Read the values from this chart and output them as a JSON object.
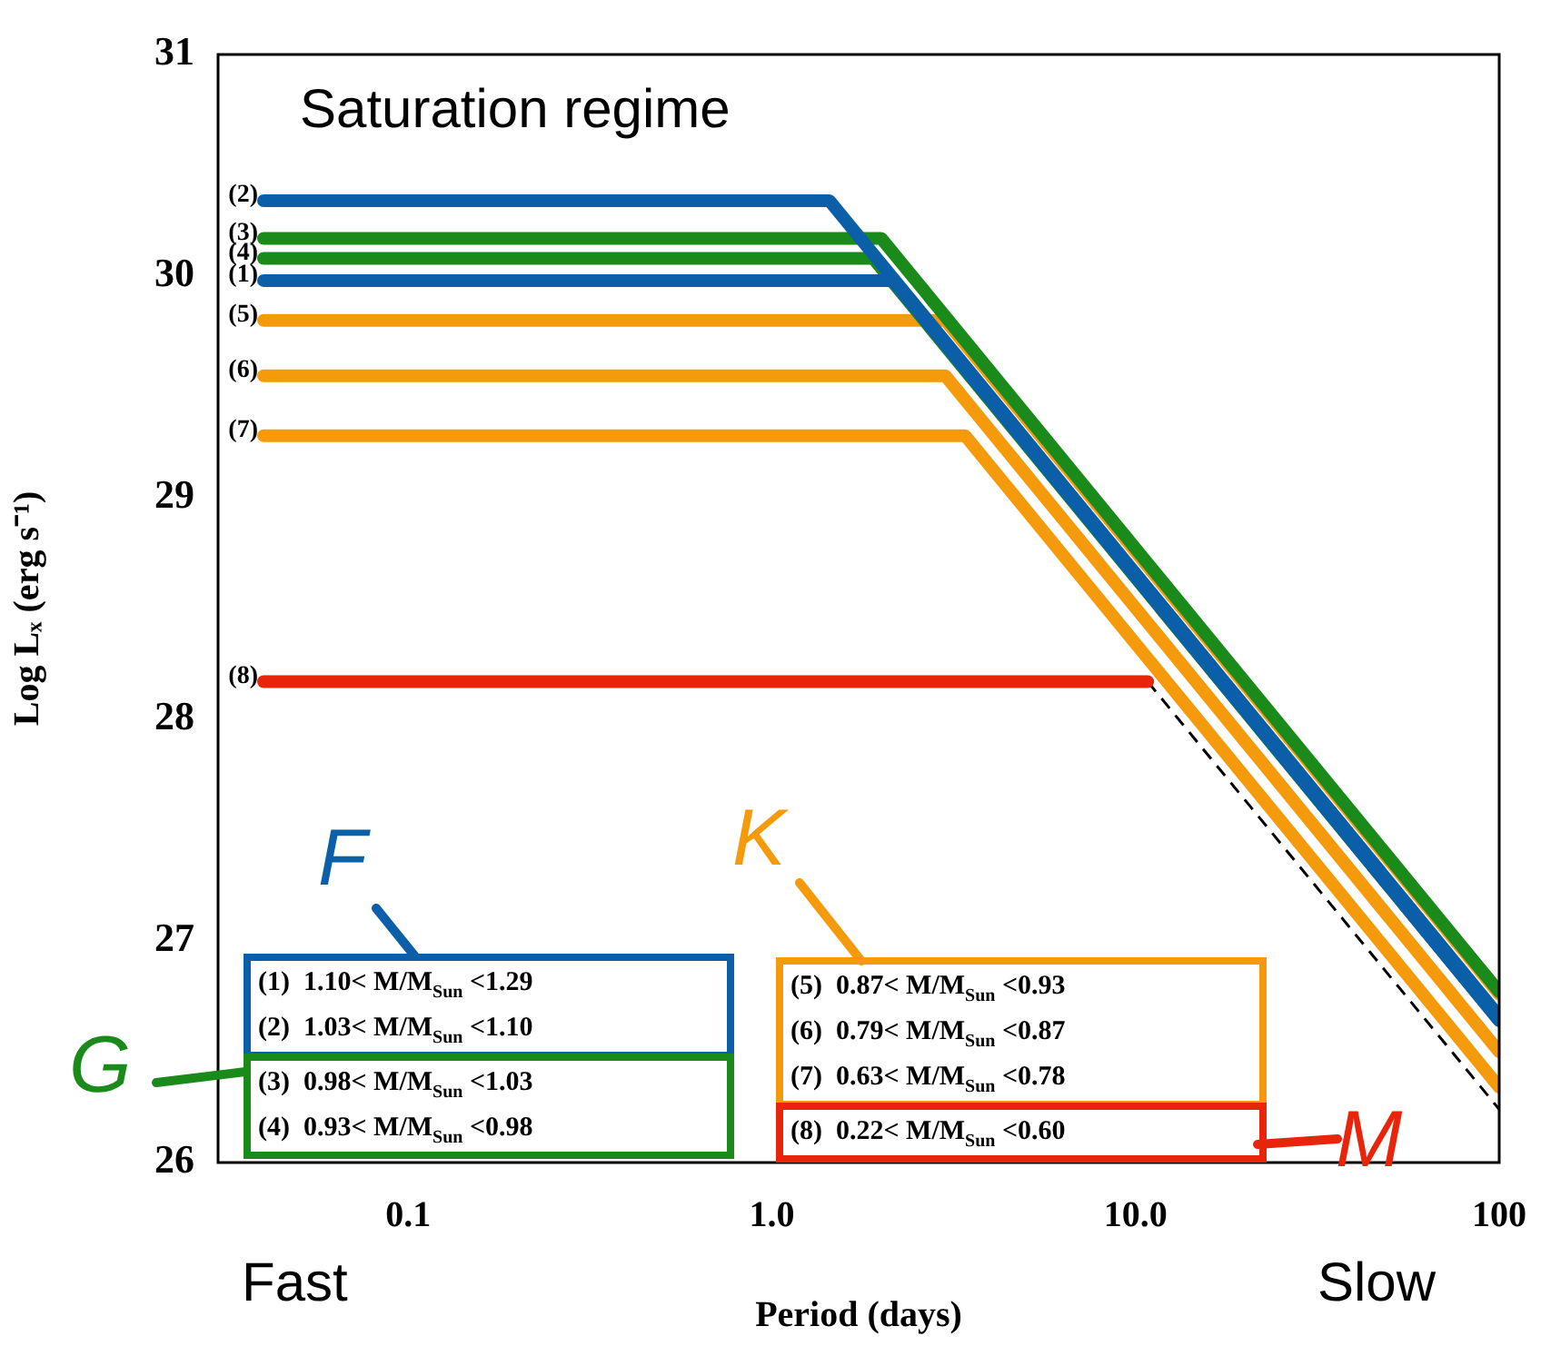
{
  "chart_data": {
    "type": "line",
    "xlabel": "Period (days)",
    "ylabel": "Log Lₓ (erg s⁻¹)",
    "log": "x",
    "xlim": [
      0.03,
      100
    ],
    "xticks": [
      0.1,
      {
        "value": 1,
        "label": "1.0"
      },
      {
        "value": 10,
        "label": "10.0"
      },
      100
    ],
    "ylim": [
      26,
      31
    ],
    "yticks": [
      26,
      27,
      28,
      29,
      30,
      31
    ],
    "grid": false,
    "legend": false,
    "marker": "none",
    "series": [
      {
        "name": "(1)",
        "color": "#0a5fa8",
        "x": [
          0.04,
          2.15,
          100
        ],
        "values": [
          29.98,
          29.98,
          26.64
        ]
      },
      {
        "name": "(2)",
        "color": "#0a5fa8",
        "x": [
          0.04,
          1.44,
          100
        ],
        "values": [
          30.34,
          30.34,
          26.66
        ]
      },
      {
        "name": "(3)",
        "color": "#1a8a1a",
        "x": [
          0.04,
          2.0,
          100
        ],
        "values": [
          30.17,
          30.17,
          26.77
        ]
      },
      {
        "name": "(4)",
        "color": "#1a8a1a",
        "x": [
          0.04,
          1.9,
          100
        ],
        "values": [
          30.08,
          30.08,
          26.64
        ]
      },
      {
        "name": "(5)",
        "color": "#f59a0a",
        "x": [
          0.04,
          3.0,
          100
        ],
        "values": [
          29.8,
          29.8,
          26.76
        ]
      },
      {
        "name": "(6)",
        "color": "#f59a0a",
        "x": [
          0.04,
          3.0,
          100
        ],
        "values": [
          29.55,
          29.55,
          26.5
        ]
      },
      {
        "name": "(7)",
        "color": "#f59a0a",
        "x": [
          0.04,
          3.4,
          100
        ],
        "values": [
          29.28,
          29.28,
          26.34
        ]
      },
      {
        "name": "(8)",
        "color": "#e8250a",
        "x": [
          0.04,
          10.8
        ],
        "values": [
          28.17,
          28.17
        ]
      },
      {
        "color": "#000000",
        "line_style": "dashed",
        "x": [
          10.8,
          100
        ],
        "values": [
          28.17,
          26.24
        ]
      }
    ],
    "annotations": [
      "Saturation regime",
      "Fast",
      "Slow",
      "F",
      "G",
      "K",
      "M",
      "(1)  1.10< M/M$_{Sun}$ <1.29",
      "(2)  1.03< M/M$_{Sun}$ <1.10",
      "(3)  0.98< M/M$_{Sun}$ <1.03",
      "(4)  0.93< M/M$_{Sun}$ <0.98",
      "(5)  0.87< M/M$_{Sun}$ <0.93",
      "(6)  0.79< M/M$_{Sun}$ <0.87",
      "(7)  0.63< M/M$_{Sun}$ <0.78",
      "(8)  0.22< M/M$_{Sun}$ <0.60"
    ]
  }
}
